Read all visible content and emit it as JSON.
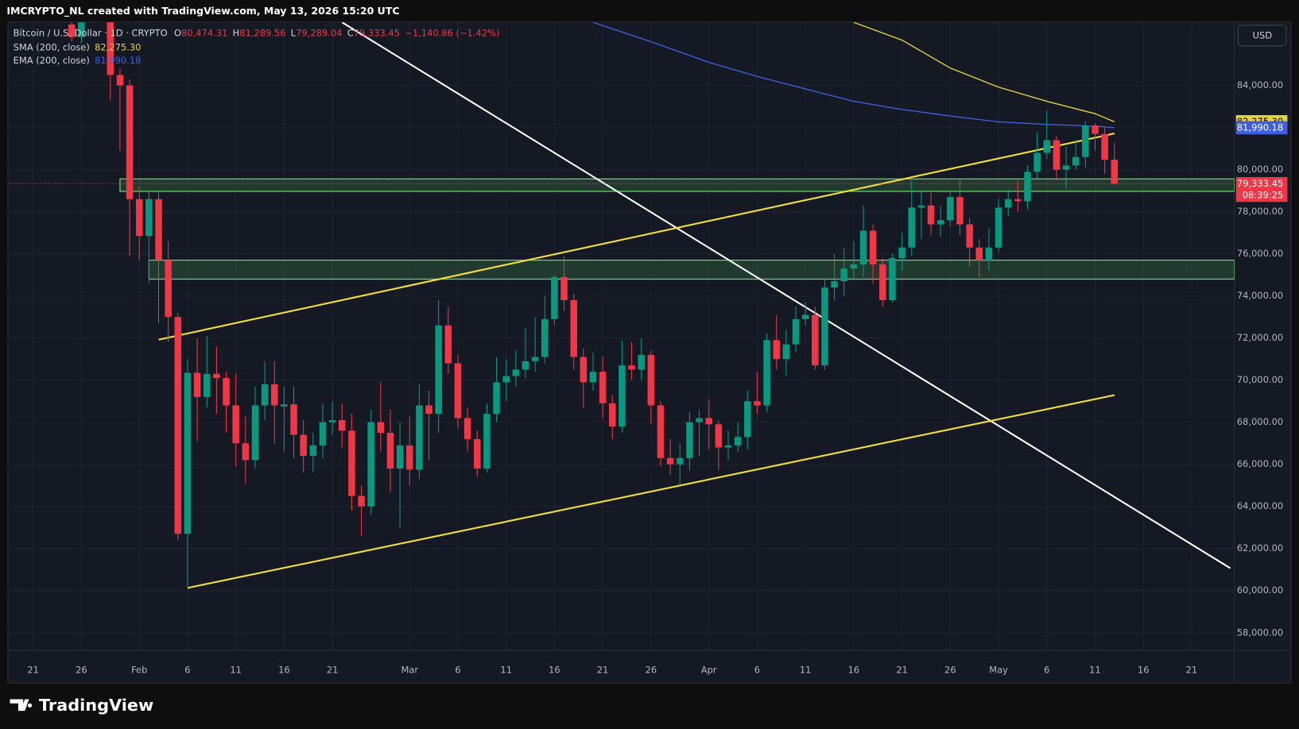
{
  "header": {
    "attribution": "IMCRYPTO_NL created with TradingView.com, May 13, 2026 15:20 UTC",
    "currency": "USD",
    "brand": "TradingView"
  },
  "chart_data": {
    "type": "candlestick",
    "title": "Bitcoin / U.S. Dollar · 1D · CRYPTO",
    "ohlc": [
      {
        "label": "O",
        "text": "80,474.31"
      },
      {
        "label": "H",
        "text": "81,289.56"
      },
      {
        "label": "L",
        "text": "79,289.04"
      },
      {
        "label": "C",
        "text": "79,333.45"
      }
    ],
    "change": "−1,140.86 (−1.42%)",
    "up_color": "#089981",
    "down_color": "#f23645",
    "x": [
      "2026-01-25",
      "2026-01-26",
      "2026-01-27",
      "2026-01-28",
      "2026-01-29",
      "2026-01-30",
      "2026-01-31",
      "2026-02-01",
      "2026-02-02",
      "2026-02-03",
      "2026-02-04",
      "2026-02-05",
      "2026-02-06",
      "2026-02-07",
      "2026-02-08",
      "2026-02-09",
      "2026-02-10",
      "2026-02-11",
      "2026-02-12",
      "2026-02-13",
      "2026-02-14",
      "2026-02-15",
      "2026-02-16",
      "2026-02-17",
      "2026-02-18",
      "2026-02-19",
      "2026-02-20",
      "2026-02-21",
      "2026-02-22",
      "2026-02-23",
      "2026-02-24",
      "2026-02-25",
      "2026-02-26",
      "2026-02-27",
      "2026-02-28",
      "2026-03-01",
      "2026-03-02",
      "2026-03-03",
      "2026-03-04",
      "2026-03-05",
      "2026-03-06",
      "2026-03-07",
      "2026-03-08",
      "2026-03-09",
      "2026-03-10",
      "2026-03-11",
      "2026-03-12",
      "2026-03-13",
      "2026-03-14",
      "2026-03-15",
      "2026-03-16",
      "2026-03-17",
      "2026-03-18",
      "2026-03-19",
      "2026-03-20",
      "2026-03-21",
      "2026-03-22",
      "2026-03-23",
      "2026-03-24",
      "2026-03-25",
      "2026-03-26",
      "2026-03-27",
      "2026-03-28",
      "2026-03-29",
      "2026-03-30",
      "2026-03-31",
      "2026-04-01",
      "2026-04-02",
      "2026-04-03",
      "2026-04-04",
      "2026-04-05",
      "2026-04-06",
      "2026-04-07",
      "2026-04-08",
      "2026-04-09",
      "2026-04-10",
      "2026-04-11",
      "2026-04-12",
      "2026-04-13",
      "2026-04-14",
      "2026-04-15",
      "2026-04-16",
      "2026-04-17",
      "2026-04-18",
      "2026-04-19",
      "2026-04-20",
      "2026-04-21",
      "2026-04-22",
      "2026-04-23",
      "2026-04-24",
      "2026-04-25",
      "2026-04-26",
      "2026-04-27",
      "2026-04-28",
      "2026-04-29",
      "2026-04-30",
      "2026-05-01",
      "2026-05-02",
      "2026-05-03",
      "2026-05-04",
      "2026-05-05",
      "2026-05-06",
      "2026-05-07",
      "2026-05-08",
      "2026-05-09",
      "2026-05-10",
      "2026-05-11",
      "2026-05-12",
      "2026-05-13"
    ],
    "open": [
      86900,
      86300,
      87200,
      88000,
      87800,
      84500,
      84000,
      78600,
      76850,
      78600,
      75700,
      73000,
      62700,
      70350,
      69200,
      70300,
      70100,
      68800,
      67000,
      66200,
      68800,
      69800,
      68750,
      68850,
      67400,
      66400,
      66900,
      68000,
      68100,
      67600,
      64500,
      64000,
      68000,
      67500,
      65800,
      66900,
      65750,
      68800,
      68400,
      72600,
      70800,
      68200,
      67200,
      65800,
      68400,
      69900,
      70200,
      70500,
      70900,
      71100,
      72900,
      74900,
      73800,
      71100,
      69900,
      70400,
      68900,
      67800,
      70700,
      70500,
      71200,
      68800,
      66300,
      66000,
      66300,
      68000,
      68200,
      67900,
      66800,
      66900,
      67300,
      69000,
      68800,
      71900,
      71000,
      71700,
      72900,
      73100,
      70700,
      74400,
      74700,
      75300,
      75500,
      77100,
      75500,
      73800,
      75800,
      76300,
      78200,
      78300,
      77400,
      77600,
      78700,
      77400,
      76300,
      75700,
      76300,
      78200,
      78600,
      78500,
      79900,
      80800,
      81400,
      80000,
      80200,
      80600,
      82100,
      81700,
      80474.31
    ],
    "high": [
      87600,
      87800,
      88400,
      88600,
      88000,
      84800,
      84300,
      79200,
      79000,
      79000,
      76600,
      73200,
      71000,
      72000,
      72100,
      71600,
      70400,
      70300,
      68300,
      69700,
      70900,
      70900,
      69700,
      69700,
      68100,
      67500,
      68900,
      69000,
      68900,
      68400,
      65000,
      68600,
      69900,
      68600,
      68000,
      68300,
      69800,
      69500,
      73800,
      73500,
      71200,
      68700,
      67600,
      68900,
      71100,
      71000,
      71400,
      72500,
      73000,
      74000,
      75000,
      75900,
      74100,
      71500,
      71300,
      71100,
      69300,
      71900,
      71800,
      72000,
      71400,
      69000,
      67200,
      67000,
      68500,
      68600,
      69100,
      68100,
      67600,
      68000,
      69500,
      70400,
      72200,
      73100,
      72400,
      73500,
      73700,
      73500,
      74800,
      76000,
      76300,
      76600,
      78300,
      77400,
      75800,
      76000,
      77000,
      79500,
      79000,
      78900,
      78300,
      79000,
      79600,
      77700,
      76700,
      77200,
      78600,
      79100,
      79500,
      80200,
      81800,
      82800,
      81600,
      81100,
      81400,
      82300,
      82200,
      82000,
      81289.56
    ],
    "low": [
      86100,
      86000,
      87000,
      87300,
      83300,
      80900,
      75900,
      75700,
      74600,
      72700,
      71800,
      62400,
      60200,
      67100,
      68700,
      68400,
      67500,
      65900,
      65100,
      65800,
      68100,
      67000,
      66600,
      66300,
      65600,
      65600,
      66300,
      67400,
      66800,
      63800,
      62600,
      63600,
      66600,
      64700,
      63000,
      65000,
      65300,
      66200,
      67500,
      70300,
      67700,
      66600,
      65400,
      65600,
      68000,
      69000,
      69700,
      70100,
      70400,
      70800,
      72600,
      73300,
      70500,
      68700,
      69500,
      68200,
      67200,
      67500,
      70000,
      70000,
      67900,
      65900,
      65500,
      65000,
      65700,
      66400,
      66700,
      65700,
      66200,
      66600,
      66700,
      68400,
      68500,
      70500,
      70200,
      71300,
      72600,
      70500,
      70500,
      73800,
      74000,
      74800,
      74900,
      74600,
      73500,
      73700,
      75200,
      75900,
      76700,
      76900,
      76800,
      77300,
      76900,
      75400,
      74900,
      75200,
      76100,
      77800,
      78000,
      78100,
      79600,
      80500,
      79500,
      79100,
      80000,
      80100,
      80900,
      79800,
      79289.04
    ],
    "close": [
      86300,
      87200,
      88000,
      87800,
      84500,
      84000,
      78600,
      76850,
      78600,
      75700,
      73000,
      62700,
      70350,
      69200,
      70300,
      70100,
      68800,
      67000,
      66200,
      68800,
      69800,
      68800,
      68850,
      67400,
      66400,
      66900,
      68000,
      68100,
      67600,
      64500,
      64000,
      68000,
      67500,
      65800,
      66900,
      65750,
      68800,
      68400,
      72600,
      70800,
      68200,
      67200,
      65800,
      68400,
      69900,
      70200,
      70500,
      70900,
      71100,
      72900,
      74900,
      73800,
      71100,
      69900,
      70400,
      68900,
      67800,
      70700,
      70500,
      71200,
      68800,
      66300,
      66000,
      66300,
      68000,
      68200,
      67900,
      66800,
      66900,
      67300,
      69000,
      68800,
      71900,
      71000,
      71700,
      72900,
      73100,
      70700,
      74400,
      74700,
      75300,
      75500,
      77100,
      75500,
      73800,
      75800,
      76300,
      78200,
      78300,
      77400,
      77600,
      78700,
      77400,
      76300,
      75700,
      76300,
      78200,
      78600,
      78500,
      79900,
      80800,
      81400,
      80000,
      80200,
      80600,
      82100,
      81700,
      80474.31,
      79333.45
    ],
    "last_price_label": "79,333.45",
    "countdown": "08:39:25",
    "series": [
      {
        "name": "SMA (200, close)",
        "color": "#e8d23c",
        "value_label": "82,275.30",
        "x": [
          "2026-04-16",
          "2026-04-21",
          "2026-04-26",
          "2026-05-01",
          "2026-05-06",
          "2026-05-11",
          "2026-05-13"
        ],
        "values": [
          87000,
          86160,
          84830,
          83920,
          83250,
          82660,
          82275.3
        ]
      },
      {
        "name": "EMA (200, close)",
        "color": "#3f5fe0",
        "value_label": "81,990.18",
        "x": [
          "2026-03-20",
          "2026-03-26",
          "2026-04-01",
          "2026-04-06",
          "2026-04-11",
          "2026-04-16",
          "2026-04-21",
          "2026-04-26",
          "2026-05-01",
          "2026-05-06",
          "2026-05-11",
          "2026-05-13"
        ],
        "values": [
          87000,
          86080,
          85100,
          84430,
          83840,
          83250,
          82860,
          82550,
          82270,
          82150,
          82070,
          81990.18
        ]
      }
    ],
    "trendlines": [
      {
        "color": "#ffffff",
        "x": [
          "2026-02-22",
          "2026-05-25"
        ],
        "values": [
          87000,
          61070
        ]
      },
      {
        "color": "#f5e232",
        "x": [
          "2026-02-03",
          "2026-05-13"
        ],
        "values": [
          71925,
          81720
        ]
      },
      {
        "color": "#f5e232",
        "x": [
          "2026-02-06",
          "2026-05-13"
        ],
        "values": [
          60130,
          69290
        ]
      }
    ],
    "zones": [
      {
        "x_start": "2026-01-30",
        "low": 78970,
        "high": 79560
      },
      {
        "x_start": "2026-02-02",
        "low": 74800,
        "high": 75700
      }
    ],
    "xlim": [
      "2026-01-18",
      "2026-05-25"
    ],
    "ylim": [
      57200,
      87000
    ],
    "xticks": [
      {
        "value": "2026-01-21",
        "label": "21"
      },
      {
        "value": "2026-01-26",
        "label": "26"
      },
      {
        "value": "2026-02-01",
        "label": "Feb"
      },
      {
        "value": "2026-02-06",
        "label": "6"
      },
      {
        "value": "2026-02-11",
        "label": "11"
      },
      {
        "value": "2026-02-16",
        "label": "16"
      },
      {
        "value": "2026-02-21",
        "label": "21"
      },
      {
        "value": "2026-03-01",
        "label": "Mar"
      },
      {
        "value": "2026-03-06",
        "label": "6"
      },
      {
        "value": "2026-03-11",
        "label": "11"
      },
      {
        "value": "2026-03-16",
        "label": "16"
      },
      {
        "value": "2026-03-21",
        "label": "21"
      },
      {
        "value": "2026-03-26",
        "label": "26"
      },
      {
        "value": "2026-04-01",
        "label": "Apr"
      },
      {
        "value": "2026-04-06",
        "label": "6"
      },
      {
        "value": "2026-04-11",
        "label": "11"
      },
      {
        "value": "2026-04-16",
        "label": "16"
      },
      {
        "value": "2026-04-21",
        "label": "21"
      },
      {
        "value": "2026-04-26",
        "label": "26"
      },
      {
        "value": "2026-05-01",
        "label": "May"
      },
      {
        "value": "2026-05-06",
        "label": "6"
      },
      {
        "value": "2026-05-11",
        "label": "11"
      },
      {
        "value": "2026-05-16",
        "label": "16"
      },
      {
        "value": "2026-05-21",
        "label": "21"
      }
    ],
    "yticks": [
      {
        "value": 58000,
        "label": "58,000.00"
      },
      {
        "value": 60000,
        "label": "60,000.00"
      },
      {
        "value": 62000,
        "label": "62,000.00"
      },
      {
        "value": 64000,
        "label": "64,000.00"
      },
      {
        "value": 66000,
        "label": "66,000.00"
      },
      {
        "value": 68000,
        "label": "68,000.00"
      },
      {
        "value": 70000,
        "label": "70,000.00"
      },
      {
        "value": 72000,
        "label": "72,000.00"
      },
      {
        "value": 74000,
        "label": "74,000.00"
      },
      {
        "value": 76000,
        "label": "76,000.00"
      },
      {
        "value": 78000,
        "label": "78,000.00"
      },
      {
        "value": 80000,
        "label": "80,000.00"
      },
      {
        "value": 82000,
        "label": "82,000.00"
      },
      {
        "value": 84000,
        "label": "84,000.00"
      }
    ],
    "grid": true
  }
}
